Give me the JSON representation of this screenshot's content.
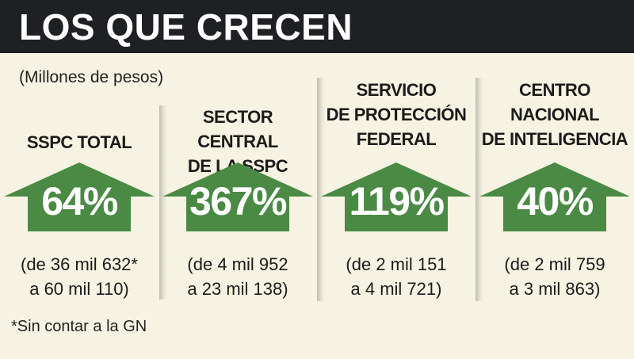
{
  "header": {
    "title": "LOS QUE CRECEN"
  },
  "units": "(Millones de pesos)",
  "footnote": "*Sin contar a la GN",
  "colors": {
    "header_bg": "#1e2024",
    "arrow_green": "#4a8a44",
    "background": "#f6f3e2"
  },
  "columns": [
    {
      "label": [
        "SSPC TOTAL"
      ],
      "percent": "64%",
      "range": [
        "(de 36 mil 632*",
        "a 60 mil 110)"
      ]
    },
    {
      "label": [
        "SECTOR CENTRAL",
        "DE LA SSPC"
      ],
      "percent": "367%",
      "range": [
        "(de 4 mil 952",
        "a 23 mil 138)"
      ]
    },
    {
      "label": [
        "SERVICIO",
        "DE PROTECCIÓN",
        "FEDERAL"
      ],
      "percent": "119%",
      "range": [
        "(de 2 mil 151",
        "a 4 mil 721)"
      ]
    },
    {
      "label": [
        "CENTRO",
        "NACIONAL",
        "DE INTELIGENCIA"
      ],
      "percent": "40%",
      "range": [
        "(de 2 mil 759",
        "a 3 mil 863)"
      ]
    }
  ]
}
